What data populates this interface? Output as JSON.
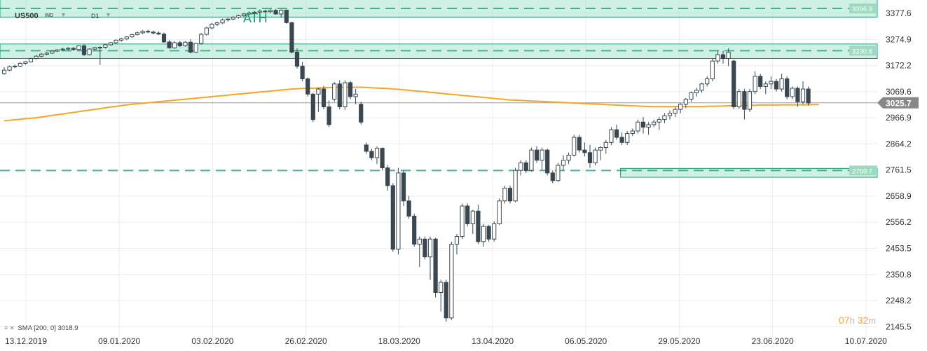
{
  "header": {
    "symbol": "US500",
    "asset_class": "IND",
    "timeframe": "D1",
    "caret": "▼"
  },
  "annotation": {
    "ath_label": "ATH"
  },
  "indicator": {
    "icons": [
      "equals-icon",
      "close-icon"
    ],
    "label": "SMA [200, 0] 3018.9",
    "color": "#f5a623"
  },
  "countdown": {
    "hours": "07",
    "hours_unit": "h",
    "minutes": "32",
    "minutes_unit": "m"
  },
  "colors": {
    "zone_fill": "#a8e6cf",
    "zone_line": "#139c6e",
    "candle_bull": "#ffffff",
    "candle_bear": "#3a4750",
    "sma": "#f5a623",
    "price_tag": "#888888"
  },
  "chart_data": {
    "type": "candlestick",
    "title": "",
    "symbol": "US500",
    "timeframe": "D1",
    "ylim": [
      2105,
      3430
    ],
    "y_ticks": [
      3377.6,
      3274.9,
      3172.2,
      3069.6,
      2966.9,
      2864.2,
      2761.5,
      2658.9,
      2556.2,
      2453.5,
      2350.8,
      2248.2,
      2145.5
    ],
    "x_tick_labels": [
      "13.12.2019",
      "09.01.2020",
      "03.02.2020",
      "26.02.2020",
      "18.03.2020",
      "13.04.2020",
      "06.05.2020",
      "29.05.2020",
      "23.06.2020",
      "10.07.2020"
    ],
    "current_price": "3025.7",
    "levels": [
      {
        "label": "3396.9",
        "value": 3396.9,
        "zone": [
          3363,
          3432
        ],
        "style": "dashed-zone"
      },
      {
        "label": "3230.8",
        "value": 3230.8,
        "zone": [
          3200,
          3257
        ],
        "style": "dashed-zone"
      },
      {
        "label": "2759.7",
        "value": 2759.7,
        "zone": [
          2733,
          2768
        ],
        "style": "dashed-zone",
        "zone_start_date": "29.04.2020"
      }
    ],
    "series": [
      {
        "type": "ohlc",
        "values": [
          [
            3141,
            3166,
            3136,
            3154
          ],
          [
            3154,
            3172,
            3150,
            3168
          ],
          [
            3168,
            3176,
            3162,
            3170
          ],
          [
            3170,
            3186,
            3166,
            3181
          ],
          [
            3181,
            3190,
            3176,
            3187
          ],
          [
            3187,
            3203,
            3184,
            3200
          ],
          [
            3200,
            3215,
            3195,
            3209
          ],
          [
            3209,
            3222,
            3204,
            3217
          ],
          [
            3217,
            3225,
            3212,
            3221
          ],
          [
            3221,
            3232,
            3218,
            3229
          ],
          [
            3229,
            3236,
            3225,
            3234
          ],
          [
            3234,
            3242,
            3229,
            3237
          ],
          [
            3237,
            3245,
            3232,
            3240
          ],
          [
            3240,
            3245,
            3230,
            3235
          ],
          [
            3235,
            3252,
            3232,
            3250
          ],
          [
            3250,
            3256,
            3210,
            3215
          ],
          [
            3215,
            3240,
            3212,
            3237
          ],
          [
            3237,
            3246,
            3230,
            3243
          ],
          [
            3243,
            3248,
            3175,
            3244
          ],
          [
            3244,
            3257,
            3239,
            3254
          ],
          [
            3254,
            3265,
            3250,
            3262
          ],
          [
            3262,
            3275,
            3256,
            3272
          ],
          [
            3272,
            3282,
            3266,
            3277
          ],
          [
            3277,
            3288,
            3272,
            3285
          ],
          [
            3285,
            3298,
            3280,
            3294
          ],
          [
            3294,
            3306,
            3290,
            3301
          ],
          [
            3301,
            3312,
            3296,
            3307
          ],
          [
            3307,
            3313,
            3300,
            3304
          ],
          [
            3304,
            3310,
            3295,
            3300
          ],
          [
            3300,
            3306,
            3292,
            3296
          ],
          [
            3296,
            3302,
            3262,
            3265
          ],
          [
            3265,
            3272,
            3238,
            3242
          ],
          [
            3242,
            3268,
            3238,
            3262
          ],
          [
            3262,
            3270,
            3245,
            3250
          ],
          [
            3250,
            3268,
            3246,
            3264
          ],
          [
            3264,
            3275,
            3220,
            3225
          ],
          [
            3225,
            3262,
            3222,
            3259
          ],
          [
            3259,
            3300,
            3255,
            3295
          ],
          [
            3295,
            3325,
            3290,
            3320
          ],
          [
            3320,
            3340,
            3315,
            3335
          ],
          [
            3335,
            3345,
            3328,
            3340
          ],
          [
            3340,
            3357,
            3335,
            3352
          ],
          [
            3352,
            3360,
            3345,
            3355
          ],
          [
            3355,
            3366,
            3350,
            3362
          ],
          [
            3362,
            3372,
            3357,
            3368
          ],
          [
            3368,
            3380,
            3362,
            3375
          ],
          [
            3375,
            3385,
            3370,
            3379
          ],
          [
            3379,
            3388,
            3373,
            3382
          ],
          [
            3382,
            3393,
            3377,
            3386
          ],
          [
            3386,
            3392,
            3380,
            3384
          ],
          [
            3384,
            3394,
            3378,
            3389
          ],
          [
            3389,
            3395,
            3372,
            3375
          ],
          [
            3375,
            3393,
            3360,
            3390
          ],
          [
            3390,
            3393,
            3337,
            3341
          ],
          [
            3341,
            3344,
            3220,
            3225
          ],
          [
            3225,
            3240,
            3160,
            3170
          ],
          [
            3170,
            3186,
            3110,
            3120
          ],
          [
            3120,
            3125,
            3050,
            3060
          ],
          [
            3060,
            3065,
            2950,
            2960
          ],
          [
            3060,
            3085,
            2990,
            3080
          ],
          [
            3080,
            3092,
            3000,
            3010
          ],
          [
            3010,
            3035,
            2930,
            2940
          ],
          [
            3040,
            3108,
            3030,
            3100
          ],
          [
            3100,
            3115,
            3000,
            3010
          ],
          [
            3010,
            3115,
            2998,
            3105
          ],
          [
            3105,
            3112,
            3040,
            3050
          ],
          [
            3050,
            3080,
            3020,
            3060
          ],
          [
            3020,
            3030,
            2940,
            2950
          ],
          [
            2860,
            2870,
            2825,
            2835
          ],
          [
            2835,
            2845,
            2800,
            2810
          ],
          [
            2810,
            2855,
            2785,
            2847
          ],
          [
            2847,
            2850,
            2760,
            2770
          ],
          [
            2770,
            2780,
            2680,
            2700
          ],
          [
            2700,
            2710,
            2440,
            2450
          ],
          [
            2450,
            2770,
            2430,
            2750
          ],
          [
            2750,
            2760,
            2620,
            2640
          ],
          [
            2640,
            2660,
            2570,
            2580
          ],
          [
            2580,
            2590,
            2460,
            2470
          ],
          [
            2470,
            2500,
            2380,
            2490
          ],
          [
            2490,
            2500,
            2410,
            2420
          ],
          [
            2420,
            2500,
            2330,
            2490
          ],
          [
            2490,
            2495,
            2260,
            2280
          ],
          [
            2280,
            2330,
            2205,
            2320
          ],
          [
            2320,
            2330,
            2165,
            2180
          ],
          [
            2180,
            2480,
            2172,
            2470
          ],
          [
            2470,
            2510,
            2430,
            2500
          ],
          [
            2500,
            2630,
            2490,
            2620
          ],
          [
            2620,
            2630,
            2540,
            2550
          ],
          [
            2550,
            2605,
            2510,
            2600
          ],
          [
            2600,
            2625,
            2470,
            2480
          ],
          [
            2480,
            2550,
            2460,
            2540
          ],
          [
            2540,
            2545,
            2480,
            2490
          ],
          [
            2490,
            2560,
            2480,
            2550
          ],
          [
            2550,
            2650,
            2545,
            2640
          ],
          [
            2640,
            2700,
            2630,
            2690
          ],
          [
            2690,
            2700,
            2630,
            2640
          ],
          [
            2640,
            2770,
            2635,
            2760
          ],
          [
            2760,
            2800,
            2740,
            2790
          ],
          [
            2790,
            2800,
            2750,
            2760
          ],
          [
            2760,
            2850,
            2755,
            2840
          ],
          [
            2840,
            2855,
            2790,
            2800
          ],
          [
            2800,
            2850,
            2760,
            2840
          ],
          [
            2840,
            2845,
            2740,
            2750
          ],
          [
            2750,
            2760,
            2710,
            2720
          ],
          [
            2720,
            2790,
            2715,
            2780
          ],
          [
            2780,
            2820,
            2760,
            2800
          ],
          [
            2800,
            2830,
            2785,
            2820
          ],
          [
            2820,
            2900,
            2815,
            2890
          ],
          [
            2890,
            2900,
            2830,
            2840
          ],
          [
            2840,
            2870,
            2815,
            2830
          ],
          [
            2830,
            2860,
            2770,
            2790
          ],
          [
            2790,
            2850,
            2780,
            2840
          ],
          [
            2840,
            2855,
            2800,
            2850
          ],
          [
            2850,
            2880,
            2825,
            2870
          ],
          [
            2870,
            2930,
            2860,
            2920
          ],
          [
            2920,
            2940,
            2880,
            2890
          ],
          [
            2890,
            2910,
            2860,
            2870
          ],
          [
            2870,
            2915,
            2860,
            2905
          ],
          [
            2905,
            2925,
            2895,
            2915
          ],
          [
            2915,
            2960,
            2905,
            2950
          ],
          [
            2950,
            2970,
            2905,
            2930
          ],
          [
            2930,
            2950,
            2900,
            2940
          ],
          [
            2940,
            2960,
            2930,
            2950
          ],
          [
            2950,
            2970,
            2920,
            2960
          ],
          [
            2960,
            2985,
            2945,
            2975
          ],
          [
            2975,
            2995,
            2960,
            2985
          ],
          [
            2985,
            3010,
            2970,
            3000
          ],
          [
            3000,
            3025,
            2985,
            3020
          ],
          [
            3020,
            3045,
            3005,
            3040
          ],
          [
            3040,
            3070,
            3030,
            3065
          ],
          [
            3065,
            3085,
            3050,
            3075
          ],
          [
            3075,
            3105,
            3065,
            3100
          ],
          [
            3100,
            3130,
            3090,
            3120
          ],
          [
            3120,
            3200,
            3110,
            3190
          ],
          [
            3190,
            3230,
            3180,
            3215
          ],
          [
            3215,
            3230,
            3180,
            3200
          ],
          [
            3200,
            3240,
            3170,
            3225
          ],
          [
            3190,
            3195,
            3000,
            3010
          ],
          [
            3010,
            3080,
            3002,
            3070
          ],
          [
            3070,
            3080,
            2960,
            3000
          ],
          [
            3000,
            3080,
            2990,
            3070
          ],
          [
            3070,
            3150,
            3060,
            3130
          ],
          [
            3130,
            3140,
            3080,
            3090
          ],
          [
            3090,
            3110,
            3060,
            3100
          ],
          [
            3100,
            3130,
            3080,
            3110
          ],
          [
            3110,
            3120,
            3070,
            3080
          ],
          [
            3080,
            3140,
            3070,
            3120
          ],
          [
            3120,
            3130,
            3040,
            3050
          ],
          [
            3050,
            3090,
            3040,
            3083
          ],
          [
            3083,
            3090,
            3010,
            3030
          ],
          [
            3030,
            3110,
            3020,
            3080
          ],
          [
            3080,
            3090,
            3015,
            3025
          ]
        ]
      },
      {
        "name": "SMA [200, 0]",
        "type": "line",
        "last_value": 3018.9,
        "values": [
          2955,
          2957,
          2959,
          2961,
          2963,
          2965,
          2967,
          2970,
          2973,
          2976,
          2979,
          2982,
          2985,
          2988,
          2991,
          2994,
          2997,
          3000,
          3003,
          3006,
          3009,
          3012,
          3015,
          3018,
          3020,
          3022,
          3024,
          3026,
          3028,
          3030,
          3032,
          3034,
          3036,
          3038,
          3040,
          3042,
          3044,
          3046,
          3048,
          3050,
          3052,
          3054,
          3056,
          3058,
          3060,
          3062,
          3064,
          3066,
          3068,
          3070,
          3072,
          3074,
          3076,
          3078,
          3080,
          3081,
          3082,
          3083,
          3083,
          3084,
          3085,
          3086,
          3087,
          3087,
          3087,
          3087,
          3087,
          3087,
          3086,
          3085,
          3084,
          3083,
          3082,
          3080,
          3079,
          3077,
          3075,
          3073,
          3071,
          3069,
          3067,
          3065,
          3063,
          3061,
          3059,
          3057,
          3055,
          3053,
          3051,
          3049,
          3047,
          3045,
          3043,
          3041,
          3039,
          3037,
          3036,
          3035,
          3034,
          3033,
          3032,
          3031,
          3030,
          3029,
          3028,
          3027,
          3026,
          3025,
          3024,
          3023,
          3022,
          3021,
          3020,
          3019,
          3018,
          3017,
          3016,
          3015,
          3014,
          3013,
          3012,
          3011,
          3011,
          3011,
          3011,
          3011,
          3011,
          3011,
          3011,
          3011,
          3011,
          3011,
          3012,
          3012,
          3013,
          3013,
          3014,
          3014,
          3015,
          3015,
          3016,
          3016,
          3017,
          3017,
          3017,
          3017,
          3018,
          3018,
          3018,
          3018,
          3018,
          3018,
          3019,
          3019
        ]
      }
    ]
  }
}
